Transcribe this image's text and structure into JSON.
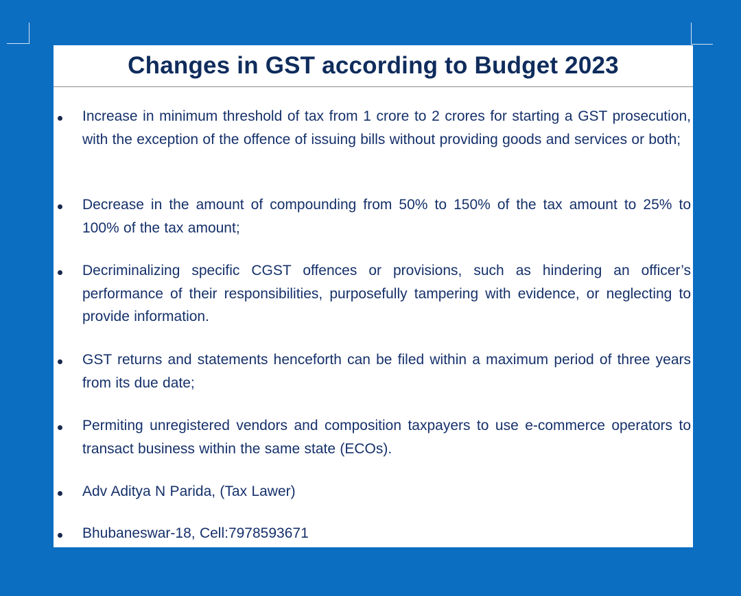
{
  "document": {
    "title": "Changes in GST according to Budget 2023",
    "items": [
      "Increase in minimum threshold of tax from 1 crore to 2 crores for starting a GST prosecution, with the exception of the offence of issuing bills without providing goods and services or both;",
      "Decrease in the amount of compounding from 50% to 150% of the tax amount to 25% to 100% of the tax amount;",
      "Decriminalizing specific CGST offences or provisions, such as hindering an officer’s performance of their responsibilities, purposefully tampering with evidence, or neglecting to provide information.",
      "GST returns and statements henceforth can be filed within a maximum period of three years from its due date;",
      "Permiting unregistered vendors and composition taxpayers to use e-commerce operators to transact business within the same state (ECOs).",
      "Adv Aditya N Parida, (Tax Lawer)",
      "Bhubaneswar-18, Cell:7978593671"
    ]
  },
  "colors": {
    "background": "#0b6ec1",
    "page": "#ffffff",
    "title": "#0f2c5c",
    "text": "#15306a"
  }
}
